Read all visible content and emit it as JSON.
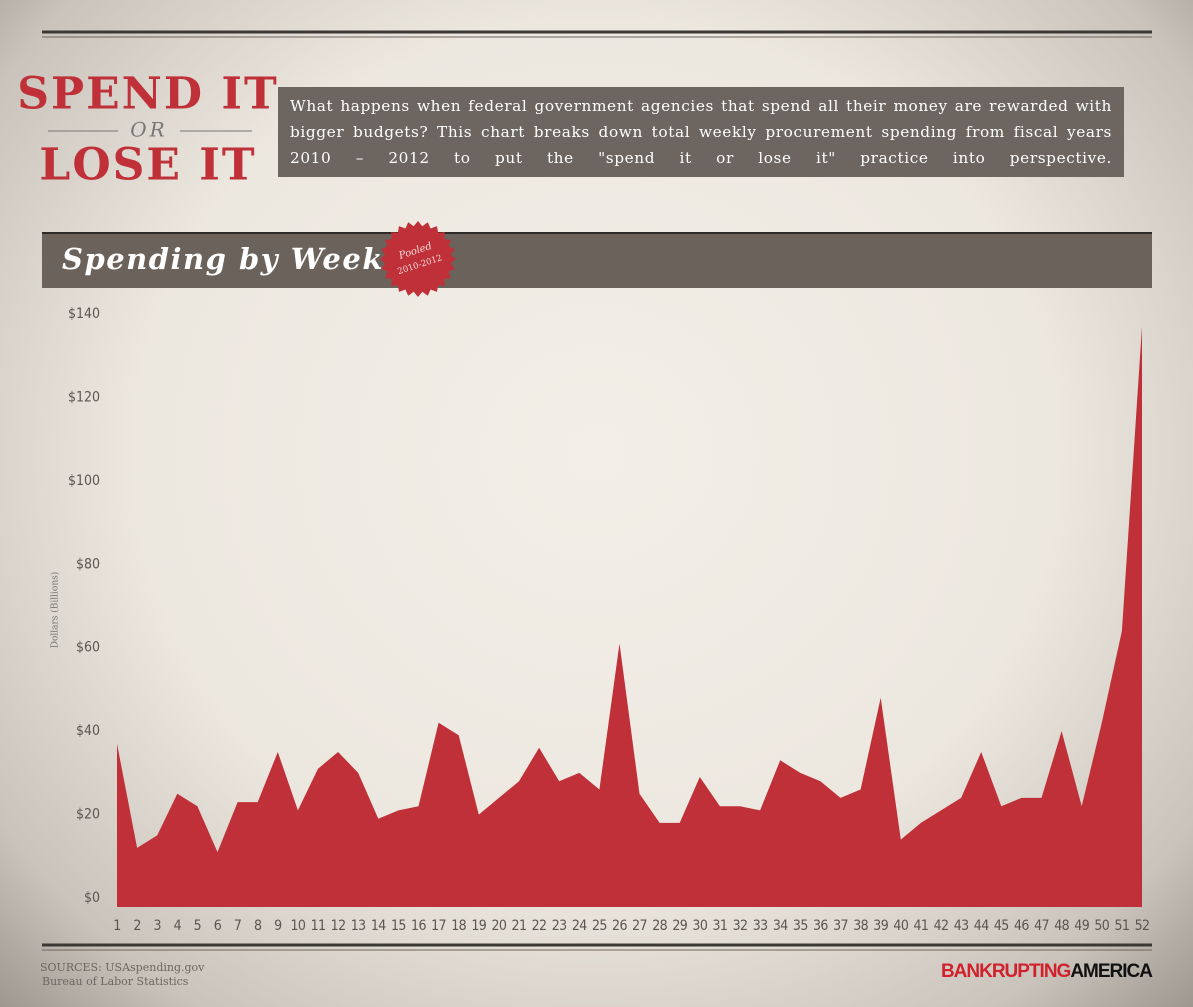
{
  "header": {
    "title_line1": "SPEND IT",
    "title_or": "OR",
    "title_line2": "LOSE IT",
    "description": "What happens when federal government agencies that spend all their money are rewarded with bigger budgets?  This chart breaks down total weekly procurement spending from fiscal years 2010 – 2012 to put the \"spend it or lose it\" practice into perspective."
  },
  "chart_data": {
    "type": "area",
    "title": "Spending by Week",
    "badge": {
      "line1": "Pooled",
      "line2": "2010-2012"
    },
    "y_label": "Dollars (Billions)",
    "categories": [
      "1",
      "2",
      "3",
      "4",
      "5",
      "6",
      "7",
      "8",
      "9",
      "10",
      "11",
      "12",
      "13",
      "14",
      "15",
      "16",
      "17",
      "18",
      "19",
      "20",
      "21",
      "22",
      "23",
      "24",
      "25",
      "26",
      "27",
      "28",
      "29",
      "30",
      "31",
      "32",
      "33",
      "34",
      "35",
      "36",
      "37",
      "38",
      "39",
      "40",
      "41",
      "42",
      "43",
      "44",
      "45",
      "46",
      "47",
      "48",
      "49",
      "50",
      "51",
      "52"
    ],
    "values": [
      37,
      12,
      15,
      25,
      22,
      11,
      23,
      23,
      35,
      21,
      31,
      35,
      30,
      19,
      21,
      22,
      42,
      39,
      20,
      24,
      28,
      36,
      28,
      30,
      26,
      61,
      25,
      18,
      18,
      29,
      22,
      22,
      21,
      33,
      30,
      28,
      24,
      26,
      48,
      14,
      18,
      21,
      24,
      35,
      22,
      24,
      24,
      40,
      22,
      42,
      64,
      137
    ],
    "color": "#bf3038",
    "ylim": [
      0,
      140
    ],
    "yticks": [
      {
        "value": 0,
        "label": "$0"
      },
      {
        "value": 20,
        "label": "$20"
      },
      {
        "value": 40,
        "label": "$40"
      },
      {
        "value": 60,
        "label": "$60"
      },
      {
        "value": 80,
        "label": "$80"
      },
      {
        "value": 100,
        "label": "$100"
      },
      {
        "value": 120,
        "label": "$120"
      },
      {
        "value": 140,
        "label": "$140"
      }
    ],
    "grid": false
  },
  "footer": {
    "sources_line1": "SOURCES: USAspending.gov",
    "sources_line2": "Bureau of Labor Statistics",
    "logo_part1": "BANKRUPTING",
    "logo_part2": "AMERICA"
  }
}
